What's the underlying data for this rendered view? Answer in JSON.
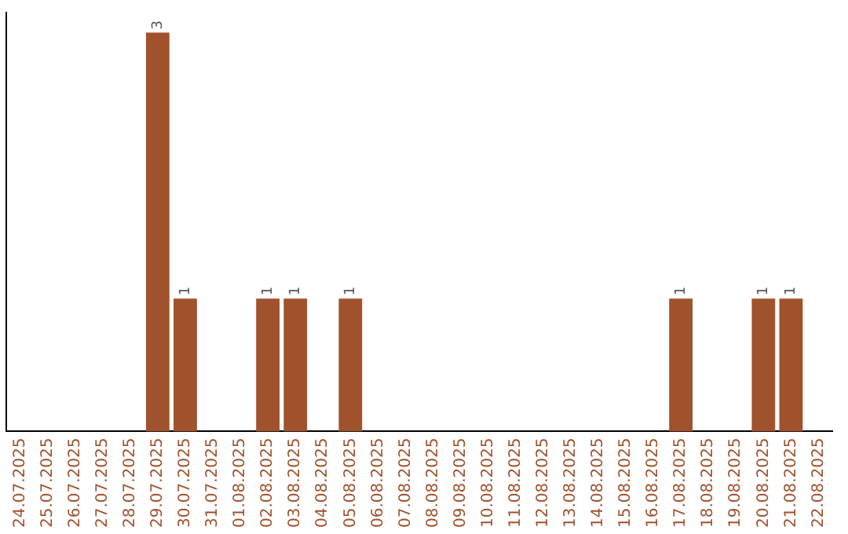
{
  "chart_data": {
    "type": "bar",
    "categories": [
      "24.07.2025",
      "25.07.2025",
      "26.07.2025",
      "27.07.2025",
      "28.07.2025",
      "29.07.2025",
      "30.07.2025",
      "31.07.2025",
      "01.08.2025",
      "02.08.2025",
      "03.08.2025",
      "04.08.2025",
      "05.08.2025",
      "06.08.2025",
      "07.08.2025",
      "08.08.2025",
      "09.08.2025",
      "10.08.2025",
      "11.08.2025",
      "12.08.2025",
      "13.08.2025",
      "14.08.2025",
      "15.08.2025",
      "16.08.2025",
      "17.08.2025",
      "18.08.2025",
      "19.08.2025",
      "20.08.2025",
      "21.08.2025",
      "22.08.2025"
    ],
    "values": [
      0,
      0,
      0,
      0,
      0,
      3,
      1,
      0,
      0,
      1,
      1,
      0,
      1,
      0,
      0,
      0,
      0,
      0,
      0,
      0,
      0,
      0,
      0,
      0,
      1,
      0,
      0,
      1,
      1,
      0
    ],
    "value_labels": [
      null,
      null,
      null,
      null,
      null,
      "3",
      "1",
      null,
      null,
      "1",
      "1",
      null,
      "1",
      null,
      null,
      null,
      null,
      null,
      null,
      null,
      null,
      null,
      null,
      null,
      "1",
      null,
      null,
      "1",
      "1",
      null
    ],
    "color": "#a0522d",
    "tick_labels": "x",
    "grid": false,
    "legend": false
  }
}
